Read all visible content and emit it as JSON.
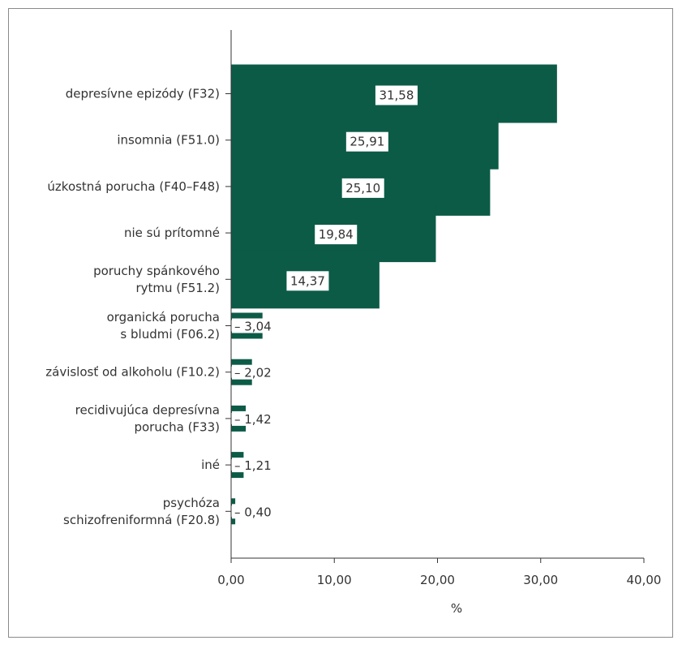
{
  "chart_data": {
    "type": "bar",
    "orientation": "horizontal",
    "categories": [
      [
        "depresívne epizódy (F32)"
      ],
      [
        "insomnia (F51.0)"
      ],
      [
        "úzkostná porucha (F40–F48)"
      ],
      [
        "nie sú prítomné"
      ],
      [
        "poruchy spánkového",
        "rytmu (F51.2)"
      ],
      [
        "organická porucha",
        "s bludmi (F06.2)"
      ],
      [
        "závislosť od alkoholu (F10.2)"
      ],
      [
        "recidivujúca depresívna",
        "porucha (F33)"
      ],
      [
        "iné"
      ],
      [
        "psychóza",
        "schizofreniformná (F20.8)"
      ]
    ],
    "values": [
      31.58,
      25.91,
      25.1,
      19.84,
      14.37,
      3.04,
      2.02,
      1.42,
      1.21,
      0.4
    ],
    "value_labels": [
      "31,58",
      "25,91",
      "25,10",
      "19,84",
      "14,37",
      "3,04",
      "2,02",
      "1,42",
      "1,21",
      "0,40"
    ],
    "x_ticks": [
      "0,00",
      "10,00",
      "20,00",
      "30,00",
      "40,00"
    ],
    "xlim": [
      0,
      40
    ],
    "xlabel": "%",
    "ylabel": "",
    "title": "",
    "grid": false,
    "colors": {
      "bar": "#0c5b47",
      "axis": "#333333",
      "label_box": "#ffffff"
    }
  }
}
